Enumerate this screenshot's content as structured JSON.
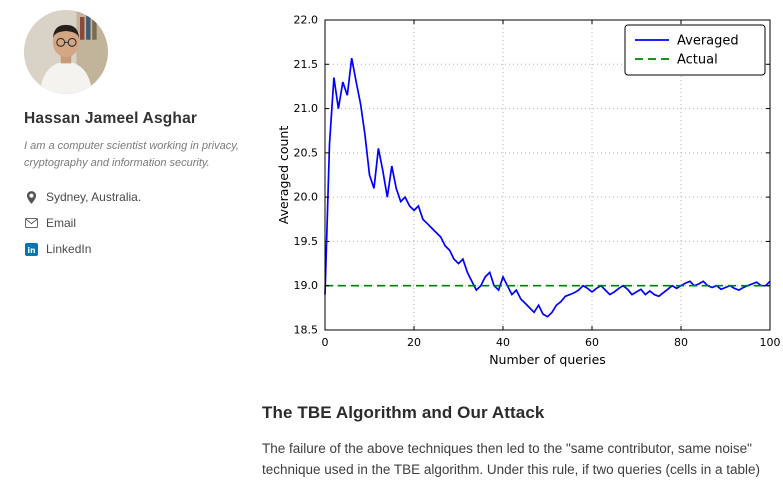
{
  "sidebar": {
    "name": "Hassan Jameel Asghar",
    "bio": "I am a computer scientist working in privacy, cryptography and information security.",
    "location": "Sydney, Australia.",
    "email_label": "Email",
    "linkedin_label": "LinkedIn",
    "linkedin_color": "#0077b5"
  },
  "article": {
    "heading": "The TBE Algorithm and Our Attack",
    "paragraph": "The failure of the above techniques then led to the \"same contributor, same noise\" technique used in the TBE algorithm. Under this rule, if two queries (cells in a table)"
  },
  "chart_data": {
    "type": "line",
    "title": "",
    "xlabel": "Number of queries",
    "ylabel": "Averaged count",
    "xlim": [
      0,
      100
    ],
    "ylim": [
      18.5,
      22.0
    ],
    "xticks": [
      0,
      20,
      40,
      60,
      80,
      100
    ],
    "yticks": [
      18.5,
      19.0,
      19.5,
      20.0,
      20.5,
      21.0,
      21.5,
      22.0
    ],
    "grid": true,
    "legend_position": "upper right",
    "series": [
      {
        "name": "Averaged",
        "color": "#0000ff",
        "style": "solid",
        "x": [
          0,
          1,
          2,
          3,
          4,
          5,
          6,
          7,
          8,
          9,
          10,
          11,
          12,
          13,
          14,
          15,
          16,
          17,
          18,
          19,
          20,
          21,
          22,
          23,
          24,
          25,
          26,
          27,
          28,
          29,
          30,
          31,
          32,
          33,
          34,
          35,
          36,
          37,
          38,
          39,
          40,
          41,
          42,
          43,
          44,
          45,
          46,
          47,
          48,
          49,
          50,
          51,
          52,
          53,
          54,
          55,
          56,
          57,
          58,
          59,
          60,
          61,
          62,
          63,
          64,
          65,
          66,
          67,
          68,
          69,
          70,
          71,
          72,
          73,
          74,
          75,
          76,
          77,
          78,
          79,
          80,
          81,
          82,
          83,
          84,
          85,
          86,
          87,
          88,
          89,
          90,
          91,
          92,
          93,
          94,
          95,
          96,
          97,
          98,
          99,
          100
        ],
        "y": [
          18.9,
          20.6,
          21.35,
          21.0,
          21.3,
          21.15,
          21.57,
          21.3,
          21.05,
          20.7,
          20.25,
          20.1,
          20.55,
          20.3,
          20.0,
          20.35,
          20.1,
          19.95,
          20.0,
          19.9,
          19.85,
          19.9,
          19.75,
          19.7,
          19.65,
          19.6,
          19.55,
          19.45,
          19.4,
          19.3,
          19.25,
          19.3,
          19.15,
          19.05,
          18.95,
          19.0,
          19.1,
          19.15,
          19.0,
          18.95,
          19.1,
          19.0,
          18.9,
          18.95,
          18.85,
          18.8,
          18.75,
          18.7,
          18.78,
          18.68,
          18.65,
          18.7,
          18.78,
          18.82,
          18.88,
          18.9,
          18.92,
          18.95,
          19.0,
          18.97,
          18.93,
          18.97,
          19.0,
          18.95,
          18.9,
          18.93,
          18.97,
          19.0,
          18.96,
          18.9,
          18.93,
          18.96,
          18.9,
          18.94,
          18.9,
          18.88,
          18.92,
          18.96,
          19.0,
          18.97,
          19.0,
          19.03,
          19.05,
          19.0,
          19.02,
          19.05,
          19.0,
          18.98,
          19.0,
          18.96,
          18.98,
          19.0,
          18.97,
          18.95,
          18.98,
          19.0,
          19.02,
          19.04,
          19.0,
          19.0,
          19.05
        ]
      },
      {
        "name": "Actual",
        "color": "#008000",
        "style": "dashed",
        "x": [
          0,
          100
        ],
        "y": [
          19.0,
          19.0
        ]
      }
    ]
  }
}
